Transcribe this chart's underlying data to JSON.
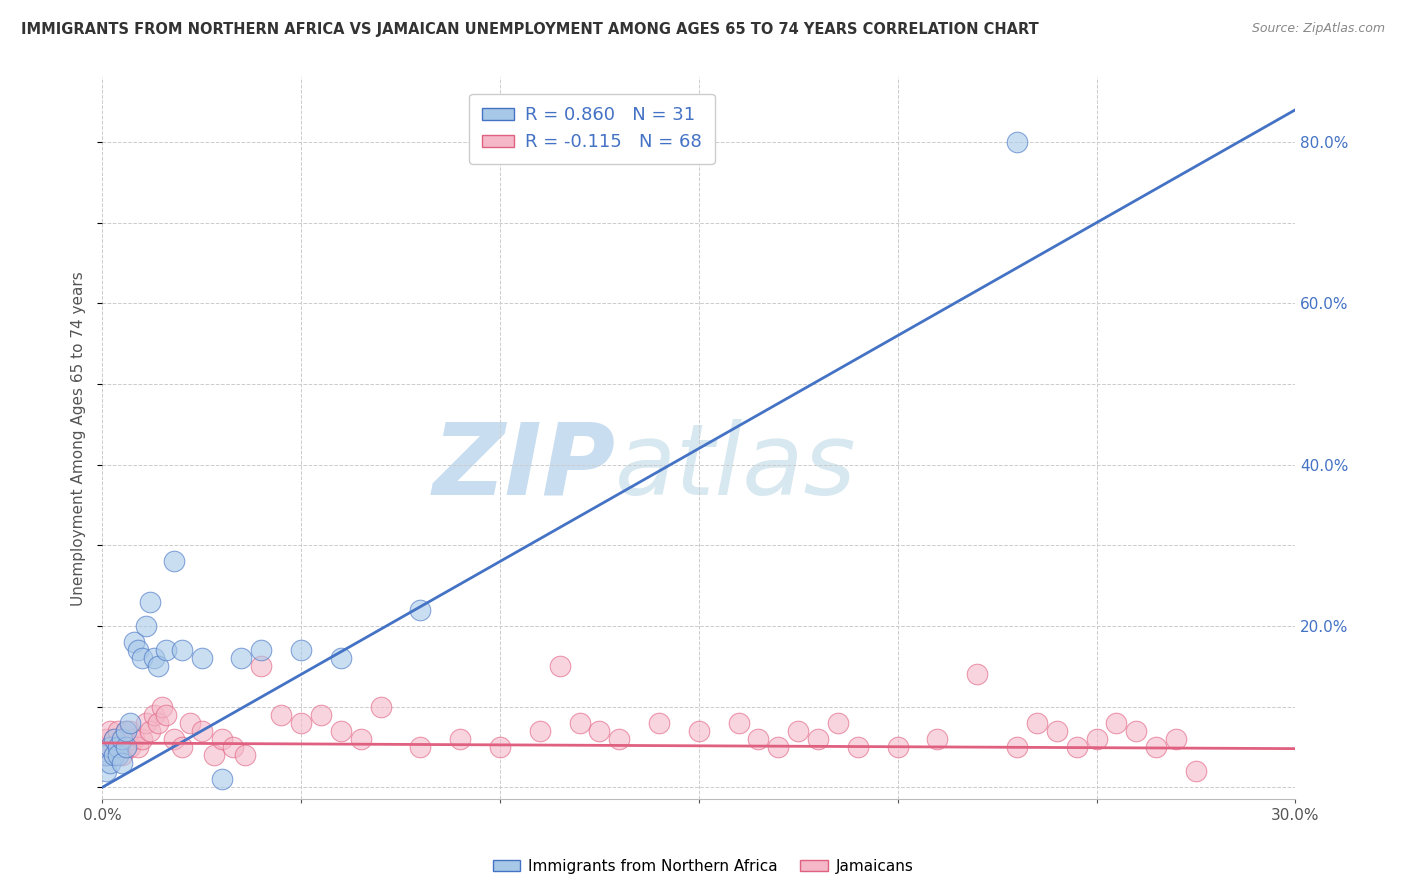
{
  "title": "IMMIGRANTS FROM NORTHERN AFRICA VS JAMAICAN UNEMPLOYMENT AMONG AGES 65 TO 74 YEARS CORRELATION CHART",
  "source": "Source: ZipAtlas.com",
  "ylabel": "Unemployment Among Ages 65 to 74 years",
  "xlim": [
    0.0,
    0.3
  ],
  "ylim": [
    -0.015,
    0.88
  ],
  "xticks": [
    0.0,
    0.05,
    0.1,
    0.15,
    0.2,
    0.25,
    0.3
  ],
  "xticklabels": [
    "0.0%",
    "",
    "",
    "",
    "",
    "",
    "30.0%"
  ],
  "yticks_right": [
    0.0,
    0.2,
    0.4,
    0.6,
    0.8
  ],
  "yticklabels_right": [
    "",
    "20.0%",
    "40.0%",
    "60.0%",
    "80.0%"
  ],
  "blue_R": 0.86,
  "blue_N": 31,
  "pink_R": -0.115,
  "pink_N": 68,
  "blue_scatter_x": [
    0.001,
    0.001,
    0.002,
    0.002,
    0.003,
    0.003,
    0.004,
    0.004,
    0.005,
    0.005,
    0.006,
    0.006,
    0.007,
    0.008,
    0.009,
    0.01,
    0.011,
    0.012,
    0.013,
    0.014,
    0.016,
    0.018,
    0.02,
    0.025,
    0.03,
    0.035,
    0.04,
    0.05,
    0.06,
    0.08,
    0.23
  ],
  "blue_scatter_y": [
    0.02,
    0.04,
    0.03,
    0.05,
    0.04,
    0.06,
    0.05,
    0.04,
    0.06,
    0.03,
    0.05,
    0.07,
    0.08,
    0.18,
    0.17,
    0.16,
    0.2,
    0.23,
    0.16,
    0.15,
    0.17,
    0.28,
    0.17,
    0.16,
    0.01,
    0.16,
    0.17,
    0.17,
    0.16,
    0.22,
    0.8
  ],
  "pink_scatter_x": [
    0.001,
    0.001,
    0.002,
    0.002,
    0.003,
    0.003,
    0.004,
    0.004,
    0.005,
    0.005,
    0.006,
    0.006,
    0.007,
    0.007,
    0.008,
    0.009,
    0.01,
    0.011,
    0.012,
    0.013,
    0.014,
    0.015,
    0.016,
    0.018,
    0.02,
    0.022,
    0.025,
    0.028,
    0.03,
    0.033,
    0.036,
    0.04,
    0.045,
    0.05,
    0.055,
    0.06,
    0.065,
    0.07,
    0.08,
    0.09,
    0.1,
    0.11,
    0.115,
    0.12,
    0.125,
    0.13,
    0.14,
    0.15,
    0.16,
    0.165,
    0.17,
    0.175,
    0.18,
    0.185,
    0.19,
    0.2,
    0.21,
    0.22,
    0.23,
    0.235,
    0.24,
    0.245,
    0.25,
    0.255,
    0.26,
    0.265,
    0.27,
    0.275
  ],
  "pink_scatter_y": [
    0.04,
    0.06,
    0.05,
    0.07,
    0.04,
    0.06,
    0.05,
    0.07,
    0.04,
    0.06,
    0.05,
    0.07,
    0.05,
    0.07,
    0.06,
    0.05,
    0.06,
    0.08,
    0.07,
    0.09,
    0.08,
    0.1,
    0.09,
    0.06,
    0.05,
    0.08,
    0.07,
    0.04,
    0.06,
    0.05,
    0.04,
    0.15,
    0.09,
    0.08,
    0.09,
    0.07,
    0.06,
    0.1,
    0.05,
    0.06,
    0.05,
    0.07,
    0.15,
    0.08,
    0.07,
    0.06,
    0.08,
    0.07,
    0.08,
    0.06,
    0.05,
    0.07,
    0.06,
    0.08,
    0.05,
    0.05,
    0.06,
    0.14,
    0.05,
    0.08,
    0.07,
    0.05,
    0.06,
    0.08,
    0.07,
    0.05,
    0.06,
    0.02
  ],
  "blue_line_x0": 0.0,
  "blue_line_x1": 0.3,
  "blue_line_y0": 0.0,
  "blue_line_y1": 0.84,
  "pink_line_x0": 0.0,
  "pink_line_x1": 0.3,
  "pink_line_y0": 0.055,
  "pink_line_y1": 0.048,
  "blue_color": "#a8c8e8",
  "pink_color": "#f4b8c8",
  "blue_line_color": "#4472c4",
  "pink_line_color": "#e06080",
  "watermark_zip_color": "#c8ddf0",
  "watermark_atlas_color": "#d8e8f0",
  "background_color": "#ffffff",
  "grid_color": "#cccccc",
  "title_color": "#333333",
  "axis_color": "#555555",
  "right_axis_color": "#4472c4",
  "legend_label_blue": "Immigrants from Northern Africa",
  "legend_label_pink": "Jamaicans"
}
